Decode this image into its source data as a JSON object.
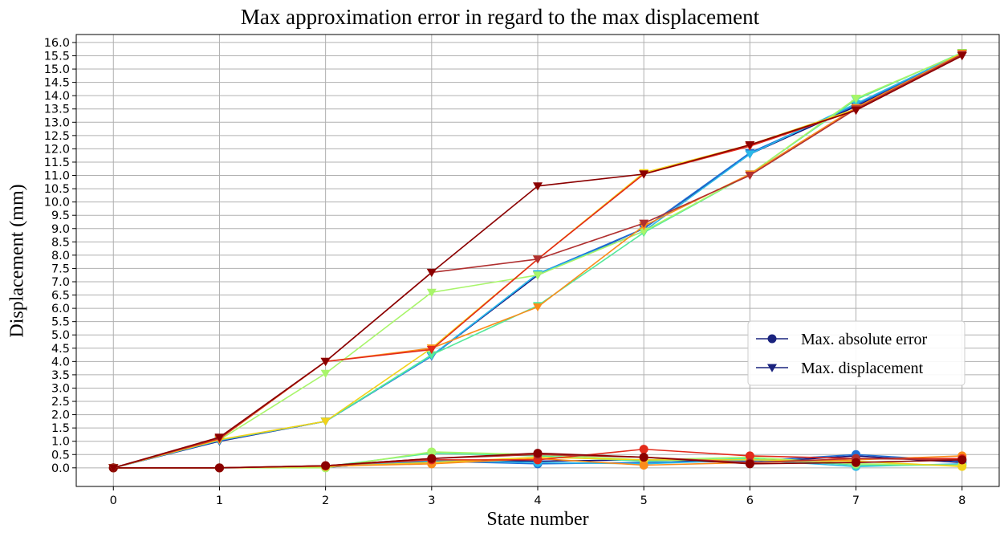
{
  "chart_data": {
    "type": "line",
    "title": "Max approximation error in regard to the max displacement",
    "xlabel": "State number",
    "ylabel": "Displacement (mm)",
    "x": [
      0,
      1,
      2,
      3,
      4,
      5,
      6,
      7,
      8
    ],
    "xlim": [
      -0.35,
      8.35
    ],
    "ylim": [
      -0.7,
      16.3
    ],
    "xticks": [
      "0",
      "1",
      "2",
      "3",
      "4",
      "5",
      "6",
      "7",
      "8"
    ],
    "yticks": [
      "0.0",
      "0.5",
      "1.0",
      "1.5",
      "2.0",
      "2.5",
      "3.0",
      "3.5",
      "4.0",
      "4.5",
      "5.0",
      "5.5",
      "6.0",
      "6.5",
      "7.0",
      "7.5",
      "8.0",
      "8.5",
      "9.0",
      "9.5",
      "10.0",
      "10.5",
      "11.0",
      "11.5",
      "12.0",
      "12.5",
      "13.0",
      "13.5",
      "14.0",
      "14.5",
      "15.0",
      "15.5",
      "16.0"
    ],
    "grid": true,
    "legend": {
      "position": "center-right",
      "entries": [
        {
          "label": "Max. absolute error",
          "marker": "circle",
          "color": "#1a237e"
        },
        {
          "label": "Max. displacement",
          "marker": "triangle-down",
          "color": "#1a237e"
        }
      ]
    },
    "displacement_series": [
      {
        "color": "#10107a",
        "values": [
          0,
          1.0,
          1.75,
          4.2,
          7.25,
          9.0,
          11.8,
          13.6,
          15.55
        ]
      },
      {
        "color": "#1f6fd6",
        "values": [
          0,
          1.02,
          1.75,
          4.2,
          7.3,
          9.0,
          11.85,
          13.65,
          15.58
        ]
      },
      {
        "color": "#2ab8e8",
        "values": [
          0,
          1.04,
          1.75,
          4.22,
          7.3,
          8.9,
          11.8,
          13.7,
          15.6
        ]
      },
      {
        "color": "#55e89a",
        "values": [
          0,
          1.05,
          1.75,
          4.25,
          6.1,
          8.85,
          11.05,
          13.85,
          15.62
        ]
      },
      {
        "color": "#a8f56a",
        "values": [
          0,
          1.05,
          3.55,
          6.6,
          7.25,
          8.9,
          11.05,
          13.9,
          15.6
        ]
      },
      {
        "color": "#f2d21a",
        "values": [
          0,
          1.06,
          1.75,
          4.5,
          7.85,
          11.1,
          12.15,
          13.5,
          15.6
        ]
      },
      {
        "color": "#fb8c1a",
        "values": [
          0,
          1.08,
          4.0,
          4.5,
          6.05,
          9.1,
          11.05,
          13.55,
          15.58
        ]
      },
      {
        "color": "#e32a1a",
        "values": [
          0,
          1.1,
          4.0,
          4.45,
          7.85,
          11.05,
          12.1,
          13.45,
          15.55
        ]
      },
      {
        "color": "#b03030",
        "values": [
          0,
          1.12,
          4.0,
          7.35,
          7.85,
          9.2,
          11.0,
          13.5,
          15.55
        ]
      },
      {
        "color": "#8b0000",
        "values": [
          0,
          1.15,
          4.0,
          7.35,
          10.6,
          11.05,
          12.15,
          13.45,
          15.5
        ]
      }
    ],
    "error_series": [
      {
        "color": "#10107a",
        "values": [
          0,
          0,
          0.02,
          0.3,
          0.25,
          0.3,
          0.2,
          0.45,
          0.2
        ]
      },
      {
        "color": "#1f6fd6",
        "values": [
          0,
          0,
          0.03,
          0.25,
          0.15,
          0.2,
          0.25,
          0.5,
          0.25
        ]
      },
      {
        "color": "#2ab8e8",
        "values": [
          0,
          0,
          0.04,
          0.28,
          0.2,
          0.15,
          0.3,
          0.05,
          0.15
        ]
      },
      {
        "color": "#55e89a",
        "values": [
          0,
          0,
          0.05,
          0.55,
          0.45,
          0.25,
          0.35,
          0.1,
          0.1
        ]
      },
      {
        "color": "#a8f56a",
        "values": [
          0,
          0,
          0.0,
          0.6,
          0.5,
          0.3,
          0.4,
          0.15,
          0.1
        ]
      },
      {
        "color": "#f2d21a",
        "values": [
          0,
          0,
          0.05,
          0.2,
          0.4,
          0.3,
          0.3,
          0.25,
          0.05
        ]
      },
      {
        "color": "#fb8c1a",
        "values": [
          0,
          0,
          0.06,
          0.15,
          0.35,
          0.1,
          0.2,
          0.3,
          0.45
        ]
      },
      {
        "color": "#e32a1a",
        "values": [
          0,
          0,
          0.08,
          0.3,
          0.3,
          0.7,
          0.45,
          0.35,
          0.35
        ]
      },
      {
        "color": "#b03030",
        "values": [
          0,
          0,
          0.08,
          0.35,
          0.5,
          0.4,
          0.2,
          0.35,
          0.3
        ]
      },
      {
        "color": "#8b0000",
        "values": [
          0,
          0,
          0.08,
          0.35,
          0.55,
          0.4,
          0.15,
          0.2,
          0.3
        ]
      }
    ]
  }
}
